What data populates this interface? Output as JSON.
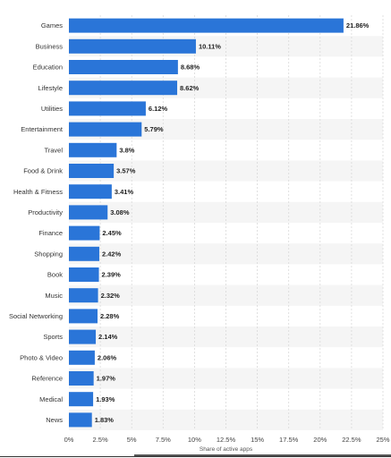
{
  "chart_data": {
    "type": "bar",
    "orientation": "horizontal",
    "categories": [
      "Games",
      "Business",
      "Education",
      "Lifestyle",
      "Utilities",
      "Entertainment",
      "Travel",
      "Food & Drink",
      "Health & Fitness",
      "Productivity",
      "Finance",
      "Shopping",
      "Book",
      "Music",
      "Social Networking",
      "Sports",
      "Photo & Video",
      "Reference",
      "Medical",
      "News"
    ],
    "values": [
      21.86,
      10.11,
      8.68,
      8.62,
      6.12,
      5.79,
      3.8,
      3.57,
      3.41,
      3.08,
      2.45,
      2.42,
      2.39,
      2.32,
      2.28,
      2.14,
      2.06,
      1.97,
      1.93,
      1.83
    ],
    "value_labels": [
      "21.86%",
      "10.11%",
      "8.68%",
      "8.62%",
      "6.12%",
      "5.79%",
      "3.8%",
      "3.57%",
      "3.41%",
      "3.08%",
      "2.45%",
      "2.42%",
      "2.39%",
      "2.32%",
      "2.28%",
      "2.14%",
      "2.06%",
      "1.97%",
      "1.93%",
      "1.83%"
    ],
    "xlim": [
      0,
      25
    ],
    "x_ticks": [
      0,
      2.5,
      5,
      7.5,
      10,
      12.5,
      15,
      17.5,
      20,
      22.5,
      25
    ],
    "x_tick_labels": [
      "0%",
      "2.5%",
      "5%",
      "7.5%",
      "10%",
      "12.5%",
      "15%",
      "17.5%",
      "20%",
      "22.5%",
      "25%"
    ],
    "xlabel": "Share of active apps",
    "grid": true,
    "bar_color": "#2a75d8",
    "stripe_color": "#f5f5f5"
  }
}
